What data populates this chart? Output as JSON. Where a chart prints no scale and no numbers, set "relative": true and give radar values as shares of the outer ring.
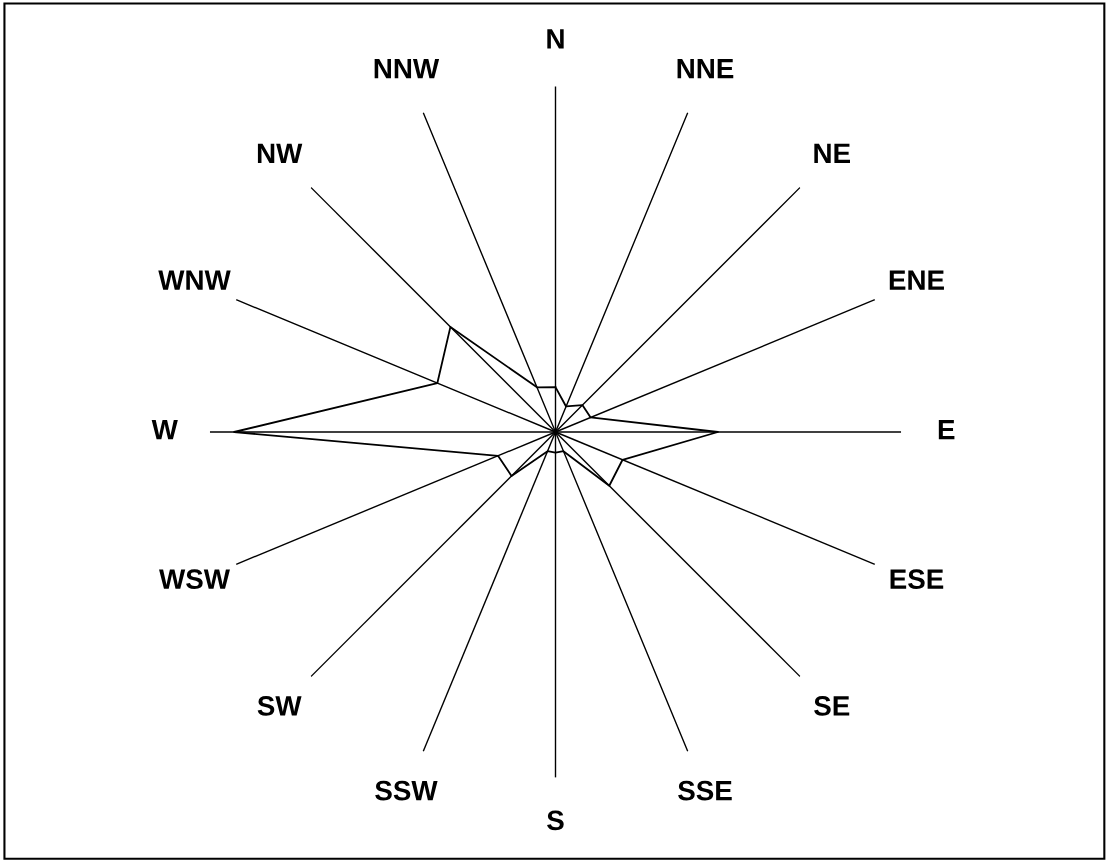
{
  "chart_data": {
    "type": "radar",
    "relative": true,
    "grid": "x",
    "marker": "none",
    "line_style": "solid",
    "categories": [
      "N",
      "NNE",
      "NE",
      "ENE",
      "E",
      "ESE",
      "SE",
      "SSE",
      "S",
      "SSW",
      "SW",
      "WSW",
      "W",
      "WNW",
      "NW",
      "NNW"
    ],
    "series": [
      {
        "color": "#000000",
        "values": [
          0.13,
          0.08,
          0.11,
          0.11,
          0.47,
          0.21,
          0.22,
          0.06,
          0.06,
          0.06,
          0.18,
          0.18,
          0.93,
          0.37,
          0.43,
          0.14
        ]
      }
    ]
  }
}
